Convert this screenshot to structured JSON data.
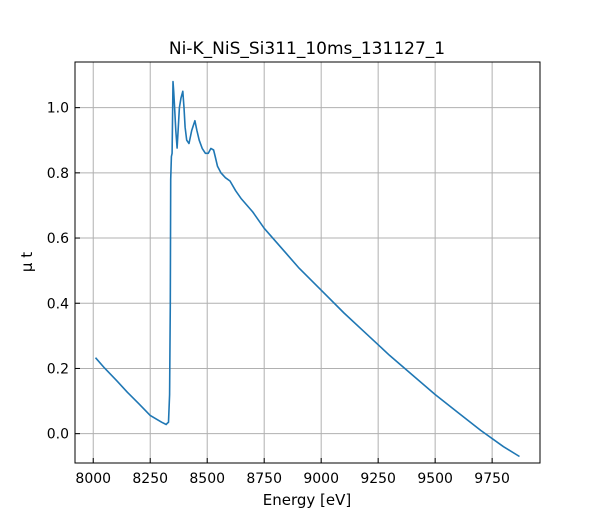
{
  "chart_data": {
    "type": "line",
    "title": "Ni-K_NiS_Si311_10ms_131127_1",
    "xlabel": "Energy [eV]",
    "ylabel": "μ t",
    "xlim": [
      7920,
      9960
    ],
    "ylim": [
      -0.09,
      1.14
    ],
    "xticks": [
      8000,
      8250,
      8500,
      8750,
      9000,
      9250,
      9500,
      9750
    ],
    "yticks": [
      0.0,
      0.2,
      0.4,
      0.6,
      0.8,
      1.0
    ],
    "grid": true,
    "series": [
      {
        "color": "#1f77b4",
        "x": [
          8010,
          8050,
          8100,
          8150,
          8200,
          8250,
          8300,
          8320,
          8325,
          8330,
          8335,
          8338,
          8340,
          8343,
          8346,
          8350,
          8353,
          8357,
          8362,
          8368,
          8373,
          8378,
          8385,
          8393,
          8398,
          8403,
          8410,
          8420,
          8432,
          8446,
          8455,
          8465,
          8478,
          8492,
          8505,
          8516,
          8528,
          8535,
          8545,
          8560,
          8580,
          8600,
          8625,
          8650,
          8700,
          8750,
          8800,
          8850,
          8900,
          8950,
          9000,
          9100,
          9200,
          9300,
          9400,
          9500,
          9600,
          9700,
          9800,
          9870
        ],
        "y": [
          0.233,
          0.201,
          0.165,
          0.127,
          0.092,
          0.056,
          0.035,
          0.028,
          0.032,
          0.035,
          0.12,
          0.4,
          0.78,
          0.85,
          0.86,
          1.08,
          1.05,
          1.0,
          0.93,
          0.876,
          0.94,
          1.0,
          1.03,
          1.05,
          1.0,
          0.94,
          0.9,
          0.89,
          0.93,
          0.96,
          0.93,
          0.9,
          0.875,
          0.86,
          0.86,
          0.875,
          0.87,
          0.85,
          0.82,
          0.8,
          0.785,
          0.775,
          0.745,
          0.72,
          0.68,
          0.63,
          0.59,
          0.55,
          0.51,
          0.475,
          0.44,
          0.37,
          0.305,
          0.24,
          0.18,
          0.12,
          0.065,
          0.01,
          -0.04,
          -0.07
        ]
      }
    ]
  }
}
